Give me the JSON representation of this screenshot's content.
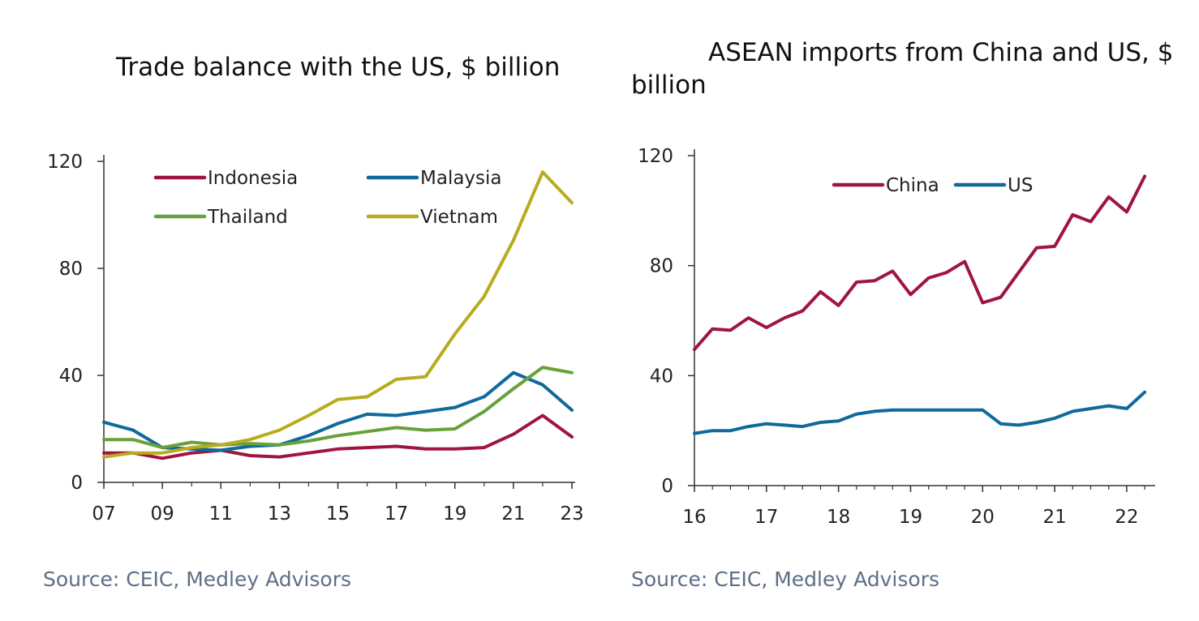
{
  "chart_data": [
    {
      "type": "line",
      "title": "Trade balance with the US, $ billion",
      "source": "Source: CEIC, Medley Advisors",
      "xlabel": "",
      "ylabel": "",
      "ylim": [
        0,
        120
      ],
      "xlim": [
        2007,
        2023
      ],
      "yticks": [
        "0",
        "40",
        "80",
        "120"
      ],
      "xticks": [
        "07",
        "09",
        "11",
        "13",
        "15",
        "17",
        "19",
        "21",
        "23"
      ],
      "x": [
        2007,
        2008,
        2009,
        2010,
        2011,
        2012,
        2013,
        2014,
        2015,
        2016,
        2017,
        2018,
        2019,
        2020,
        2021,
        2022,
        2023
      ],
      "legend_position": "top",
      "series": [
        {
          "name": "Indonesia",
          "color": "#a0153e",
          "values": [
            11,
            11,
            9,
            11,
            12,
            10,
            9.5,
            11,
            12.5,
            13,
            13.5,
            12.5,
            12.5,
            13,
            18,
            25,
            17
          ]
        },
        {
          "name": "Malaysia",
          "color": "#0f6a9b",
          "values": [
            22.5,
            19.5,
            13,
            12.5,
            12,
            13.5,
            14,
            17.5,
            22,
            25.5,
            25,
            26.5,
            28,
            32,
            41,
            36.5,
            27
          ]
        },
        {
          "name": "Thailand",
          "color": "#67a13b",
          "values": [
            16,
            16,
            13,
            15,
            14,
            14.5,
            14,
            15.5,
            17.5,
            19,
            20.5,
            19.5,
            20,
            26.5,
            35,
            43,
            41
          ]
        },
        {
          "name": "Vietnam",
          "color": "#b8ac1e",
          "values": [
            9.5,
            11,
            11,
            13,
            14,
            16,
            19.5,
            25,
            31,
            32,
            38.5,
            39.5,
            55.5,
            69.5,
            90.5,
            116,
            104.5
          ]
        }
      ]
    },
    {
      "type": "line",
      "title_line1": "ASEAN imports from China and US, $",
      "title_line2": "billion",
      "source": "Source: CEIC, Medley Advisors",
      "xlabel": "",
      "ylabel": "",
      "ylim": [
        0,
        120
      ],
      "xlim": [
        2016,
        2022.35
      ],
      "yticks": [
        "0",
        "40",
        "80",
        "120"
      ],
      "xticks": [
        "16",
        "17",
        "18",
        "19",
        "20",
        "21",
        "22"
      ],
      "x": [
        2016,
        2016.25,
        2016.5,
        2016.75,
        2017,
        2017.25,
        2017.5,
        2017.75,
        2018,
        2018.25,
        2018.5,
        2018.75,
        2019,
        2019.25,
        2019.5,
        2019.75,
        2020,
        2020.25,
        2020.5,
        2020.75,
        2021,
        2021.25,
        2021.5,
        2021.75,
        2022,
        2022.25
      ],
      "legend_position": "top",
      "series": [
        {
          "name": "China",
          "color": "#a0153e",
          "values": [
            49.5,
            57,
            56.5,
            61,
            57.5,
            61,
            63.5,
            70.5,
            65.5,
            74,
            74.5,
            78,
            69.5,
            75.5,
            77.5,
            81.5,
            66.5,
            68.5,
            77.5,
            86.5,
            87,
            98.5,
            96,
            105,
            99.5,
            112.5
          ]
        },
        {
          "name": "US",
          "color": "#0f6a9b",
          "values": [
            19,
            20,
            20,
            21.5,
            22.5,
            22,
            21.5,
            23,
            23.5,
            26,
            27,
            27.5,
            27.5,
            27.5,
            27.5,
            27.5,
            27.5,
            22.5,
            22,
            23,
            24.5,
            27,
            28,
            29,
            28,
            34
          ]
        }
      ]
    }
  ]
}
